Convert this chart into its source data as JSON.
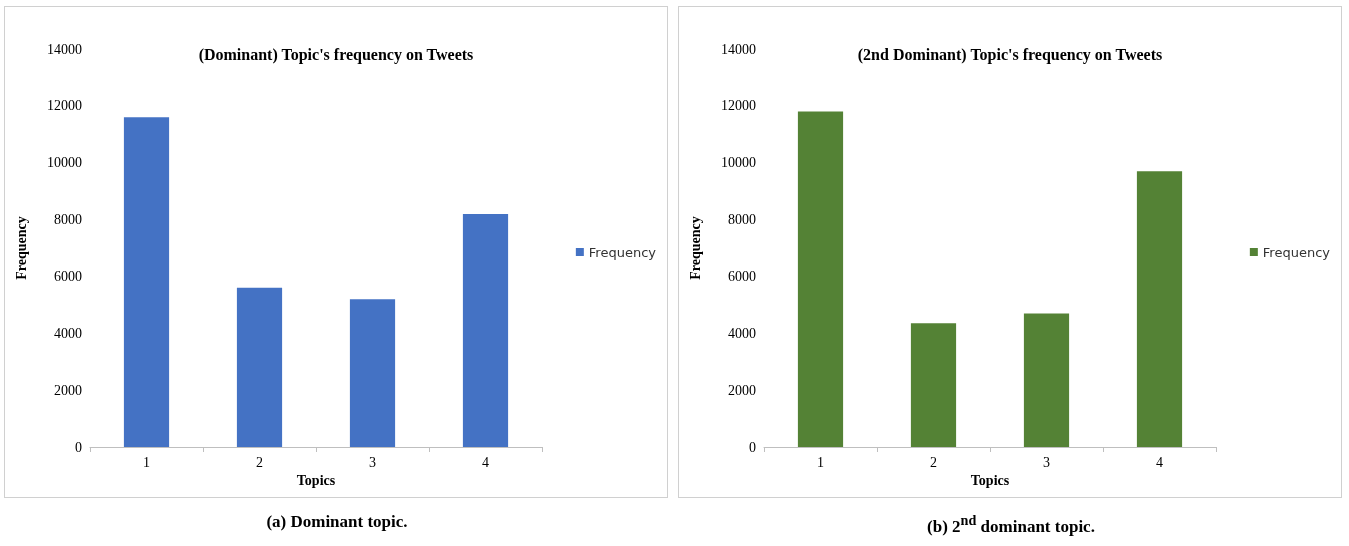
{
  "chart_data": [
    {
      "type": "bar",
      "title": "(Dominant) Topic's frequency on Tweets",
      "xlabel": "Topics",
      "ylabel": "Frequency",
      "categories": [
        "1",
        "2",
        "3",
        "4"
      ],
      "series": [
        {
          "name": "Frequency",
          "color": "#4472c4",
          "values": [
            11600,
            5600,
            5200,
            8200
          ]
        }
      ],
      "ylim": [
        0,
        14000
      ],
      "yticks": [
        0,
        2000,
        4000,
        6000,
        8000,
        10000,
        12000,
        14000
      ],
      "grid": false,
      "legend": "right",
      "annotations": [
        "(a) Dominant topic."
      ]
    },
    {
      "type": "bar",
      "title": "(2nd Dominant) Topic's frequency on Tweets",
      "xlabel": "Topics",
      "ylabel": "Frequency",
      "categories": [
        "1",
        "2",
        "3",
        "4"
      ],
      "series": [
        {
          "name": "Frequency",
          "color": "#548235",
          "values": [
            11800,
            4350,
            4700,
            9700
          ]
        }
      ],
      "ylim": [
        0,
        14000
      ],
      "yticks": [
        0,
        2000,
        4000,
        6000,
        8000,
        10000,
        12000,
        14000
      ],
      "grid": false,
      "legend": "right",
      "annotations": [
        "(b) 2$^{nd}$ dominant topic."
      ]
    }
  ]
}
